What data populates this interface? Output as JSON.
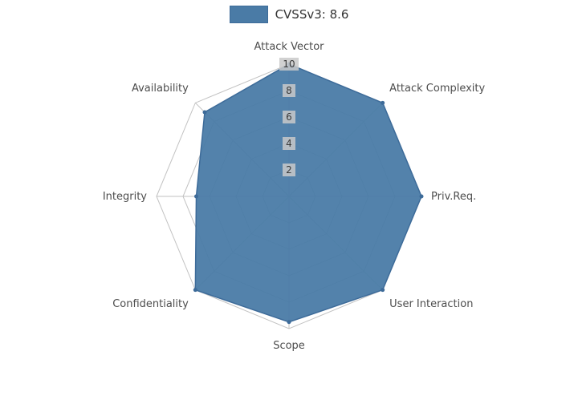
{
  "chart_data": {
    "type": "radar",
    "title": "",
    "legend_position": "top-center",
    "categories": [
      "Attack Vector",
      "Attack Complexity",
      "Priv.Req.",
      "User Interaction",
      "Scope",
      "Confidentiality",
      "Integrity",
      "Availability"
    ],
    "series": [
      {
        "name": "CVSSv3: 8.6",
        "values": [
          10,
          10,
          10,
          10,
          9.5,
          10,
          7,
          9
        ],
        "fill_color": "#4a7ba6",
        "line_color": "#3d6b99",
        "fill_opacity": 0.95
      }
    ],
    "radial_ticks": [
      2,
      4,
      6,
      8,
      10
    ],
    "radial_range": [
      0,
      10
    ],
    "grid": true,
    "grid_color": "#c2c2c2",
    "tick_label_bg": "#c9c9c9",
    "tick_label_color": "#3a3a3a",
    "axis_label_color": "#4d4d4d",
    "background_color": "#ffffff"
  }
}
